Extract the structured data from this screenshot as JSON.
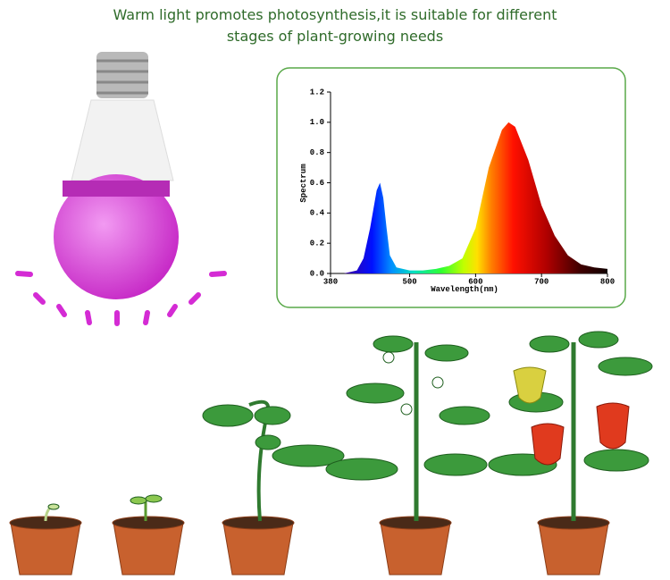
{
  "header": {
    "lines": [
      "Warm light promotes photosynthesis,it is suitable for different",
      "stages of plant-growing needs"
    ]
  },
  "chart_data": {
    "type": "area",
    "x_label": "Wavelength(nm)",
    "y_label": "Spectrum",
    "x": [
      400,
      420,
      430,
      440,
      450,
      455,
      460,
      465,
      470,
      480,
      500,
      520,
      540,
      560,
      580,
      600,
      620,
      640,
      650,
      660,
      680,
      700,
      720,
      740,
      760,
      780,
      800
    ],
    "y": [
      0,
      0.02,
      0.1,
      0.3,
      0.55,
      0.6,
      0.5,
      0.3,
      0.12,
      0.04,
      0.02,
      0.02,
      0.03,
      0.05,
      0.1,
      0.3,
      0.7,
      0.95,
      1.0,
      0.97,
      0.75,
      0.45,
      0.25,
      0.12,
      0.06,
      0.04,
      0.03
    ],
    "xlim": [
      380,
      800
    ],
    "ylim": [
      0,
      1.2
    ],
    "xticks": [
      380,
      500,
      600,
      700,
      800
    ],
    "yticks": [
      {
        "value": 0,
        "label": "0.0"
      },
      {
        "value": 0.2,
        "label": "0.2"
      },
      {
        "value": 0.4,
        "label": "0.4"
      },
      {
        "value": 0.6,
        "label": "0.6"
      },
      {
        "value": 0.8,
        "label": "0.8"
      },
      {
        "value": 1,
        "label": "1.0"
      },
      {
        "value": 1.2,
        "label": "1.2"
      }
    ]
  }
}
